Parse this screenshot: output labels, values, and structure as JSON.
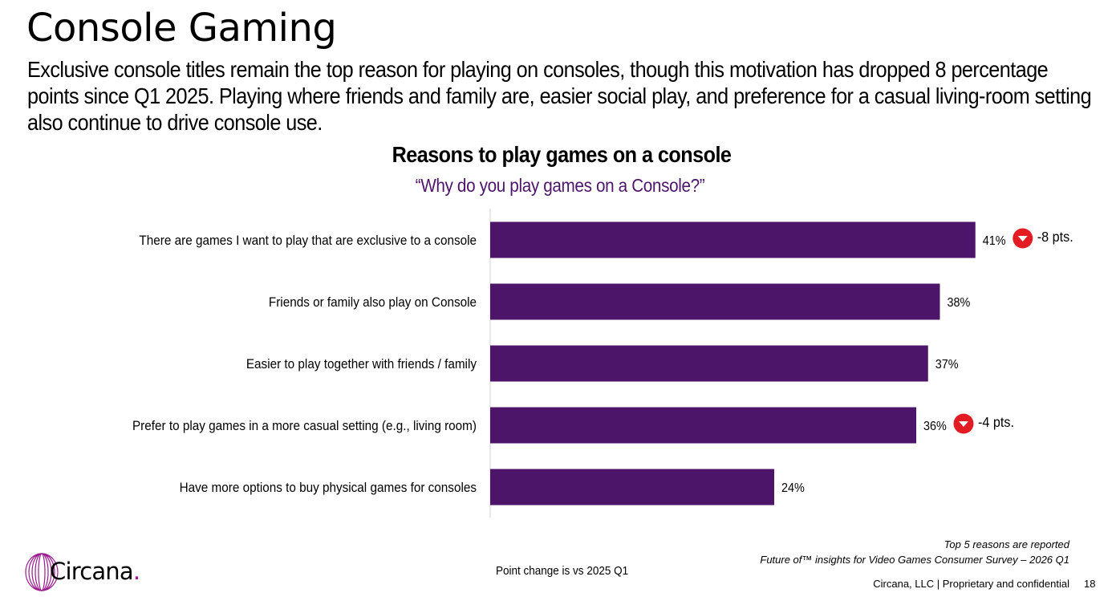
{
  "page": {
    "title": "Console Gaming",
    "subtitle": "Exclusive console titles remain the top reason for playing on consoles, though this motivation has dropped 8 percentage points since Q1 2025. Playing where friends and family are, easier social play, and preference for a casual living-room setting also continue to drive console use."
  },
  "chart_data": {
    "type": "bar",
    "orientation": "horizontal",
    "title": "Reasons to play games on a console",
    "subtitle": "“Why do you play games on a Console?”",
    "categories": [
      "There are games I want to play that are exclusive to a console",
      "Friends or family also play on Console",
      "Easier to play together with friends / family",
      "Prefer to play games in a more casual setting (e.g., living room)",
      "Have more options to buy physical games for consoles"
    ],
    "values": [
      41,
      38,
      37,
      36,
      24
    ],
    "value_labels": [
      "41%",
      "38%",
      "37%",
      "36%",
      "24%"
    ],
    "point_change": [
      "-8 pts.",
      null,
      null,
      "-4 pts.",
      null
    ],
    "xlim": [
      0,
      50
    ],
    "grid": false,
    "bar_color": "#4d1569",
    "change_badge_color": "#e31b23"
  },
  "footnotes": {
    "top5": "Top 5 reasons are reported",
    "survey": "Future of™ insights for Video Games Consumer Survey – 2026 Q1",
    "point_change": "Point change is vs 2025 Q1",
    "footer": "Circana, LLC |  Proprietary and confidential",
    "page_number": "18"
  },
  "logo": {
    "text": "Circana",
    "dot": "."
  }
}
